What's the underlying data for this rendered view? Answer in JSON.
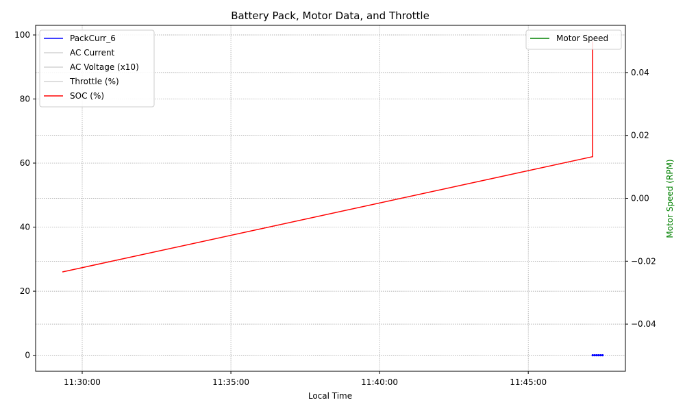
{
  "chart_data": {
    "type": "line",
    "title": "Battery Pack, Motor Data, and Throttle",
    "xlabel": "Local Time",
    "ylabel_left": "",
    "ylabel_right": "Motor Speed (RPM)",
    "x_ticks": [
      "11:30:00",
      "11:35:00",
      "11:40:00",
      "11:45:00"
    ],
    "xlim": [
      "11:28:26",
      "11:48:16"
    ],
    "ylim_left": [
      -5,
      103
    ],
    "yticks_left": [
      0,
      20,
      40,
      60,
      80,
      100
    ],
    "ylim_right": [
      -0.055,
      0.055
    ],
    "yticks_right": [
      "0.04",
      "0.02",
      "0.00",
      "−0.02",
      "−0.04"
    ],
    "grid": true,
    "legend_left_position": "top-left",
    "legend_right_position": "top-right",
    "series": [
      {
        "name": "SOC (%)",
        "axis": "left",
        "color": "#ff0000",
        "points": [
          [
            "11:29:20",
            26
          ],
          [
            "11:47:10",
            62
          ],
          [
            "11:47:10",
            98
          ]
        ]
      },
      {
        "name": "PackCurr_6",
        "axis": "left",
        "color": "#0000ff",
        "style": "markers",
        "points": [
          [
            "11:47:10",
            0
          ],
          [
            "11:47:14",
            0
          ],
          [
            "11:47:18",
            0
          ],
          [
            "11:47:22",
            0
          ],
          [
            "11:47:26",
            0
          ],
          [
            "11:47:30",
            0
          ]
        ]
      },
      {
        "name": "AC Current",
        "axis": "left",
        "color": "#d3d3d3",
        "points": []
      },
      {
        "name": "AC Voltage (x10)",
        "axis": "left",
        "color": "#d3d3d3",
        "points": []
      },
      {
        "name": "Throttle (%)",
        "axis": "left",
        "color": "#d3d3d3",
        "points": []
      },
      {
        "name": "Motor Speed",
        "axis": "right",
        "color": "#008000",
        "points": []
      }
    ],
    "legend_left": [
      {
        "label": "PackCurr_6",
        "color": "#0000ff"
      },
      {
        "label": "AC Current",
        "color": "#d3d3d3"
      },
      {
        "label": "AC Voltage (x10)",
        "color": "#d3d3d3"
      },
      {
        "label": "Throttle (%)",
        "color": "#d3d3d3"
      },
      {
        "label": "SOC (%)",
        "color": "#ff0000"
      }
    ],
    "legend_right": [
      {
        "label": "Motor Speed",
        "color": "#008000"
      }
    ]
  }
}
